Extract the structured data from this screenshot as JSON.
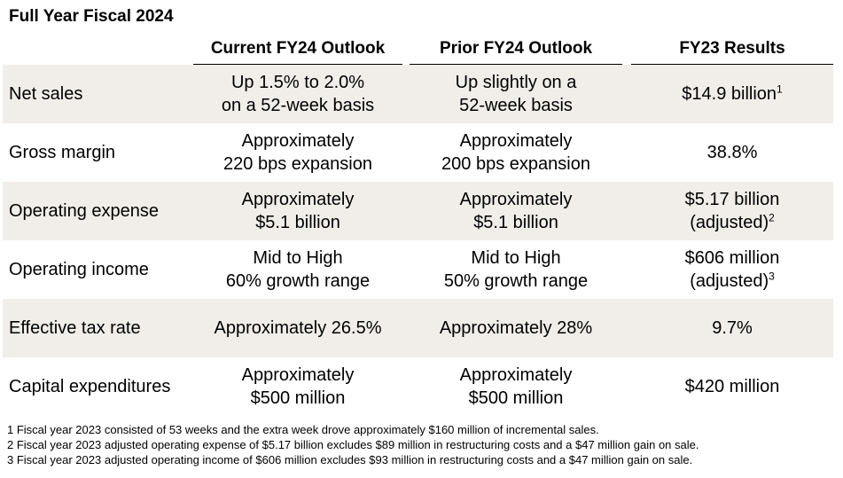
{
  "title": "Full Year Fiscal 2024",
  "headers": [
    "Current FY24 Outlook",
    "Prior FY24 Outlook",
    "FY23 Results"
  ],
  "rows": [
    {
      "label": "Net sales",
      "current": [
        "Up 1.5% to 2.0%",
        "on a 52-week basis"
      ],
      "prior": [
        "Up slightly on a",
        "52-week basis"
      ],
      "fy23": [
        "$14.9 billion"
      ],
      "fy23_sup": "1"
    },
    {
      "label": "Gross margin",
      "current": [
        "Approximately",
        "220 bps expansion"
      ],
      "prior": [
        "Approximately",
        "200 bps expansion"
      ],
      "fy23": [
        "38.8%"
      ],
      "fy23_sup": ""
    },
    {
      "label": "Operating expense",
      "current": [
        "Approximately",
        "$5.1 billion"
      ],
      "prior": [
        "Approximately",
        "$5.1 billion"
      ],
      "fy23": [
        "$5.17 billion",
        "(adjusted)"
      ],
      "fy23_sup": "2"
    },
    {
      "label": "Operating income",
      "current": [
        "Mid to High",
        "60% growth range"
      ],
      "prior": [
        "Mid to High",
        "50% growth range"
      ],
      "fy23": [
        "$606 million",
        "(adjusted)"
      ],
      "fy23_sup": "3"
    },
    {
      "label": "Effective tax rate",
      "current": [
        "Approximately 26.5%"
      ],
      "prior": [
        "Approximately 28%"
      ],
      "fy23": [
        "9.7%"
      ],
      "fy23_sup": ""
    },
    {
      "label": "Capital expenditures",
      "current": [
        "Approximately",
        "$500 million"
      ],
      "prior": [
        "Approximately",
        "$500 million"
      ],
      "fy23": [
        "$420 million"
      ],
      "fy23_sup": ""
    }
  ],
  "footnotes": [
    "1 Fiscal year 2023 consisted of 53 weeks and the extra week drove approximately $160 million of incremental sales.",
    "2 Fiscal year 2023 adjusted operating expense of $5.17 billion excludes $89 million in restructuring costs and a $47 million gain on sale.",
    "3 Fiscal year 2023 adjusted operating income of $606 million excludes $93 million in restructuring costs and a $47 million gain on sale."
  ]
}
